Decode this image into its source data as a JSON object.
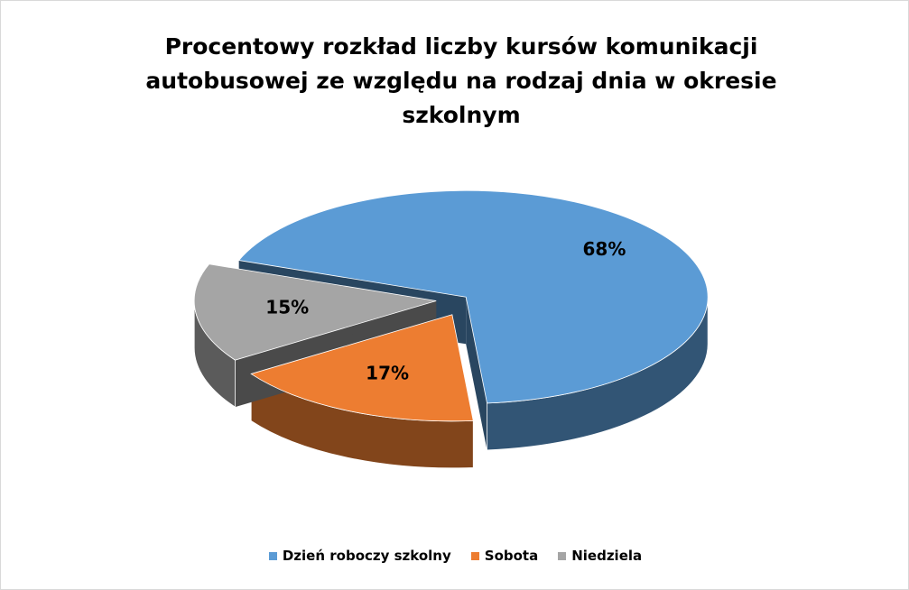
{
  "chart_data": {
    "type": "pie",
    "title": "Procentowy rozkład liczby kursów komunikacji autobusowej ze względu na rodzaj dnia w okresie szkolnym",
    "categories": [
      "Dzień roboczy szkolny",
      "Sobota",
      "Niedziela"
    ],
    "values": [
      68,
      17,
      15
    ],
    "value_labels": [
      "68%",
      "17%",
      "15%"
    ],
    "colors": [
      "#5b9bd5",
      "#ed7d31",
      "#a5a5a5"
    ]
  }
}
